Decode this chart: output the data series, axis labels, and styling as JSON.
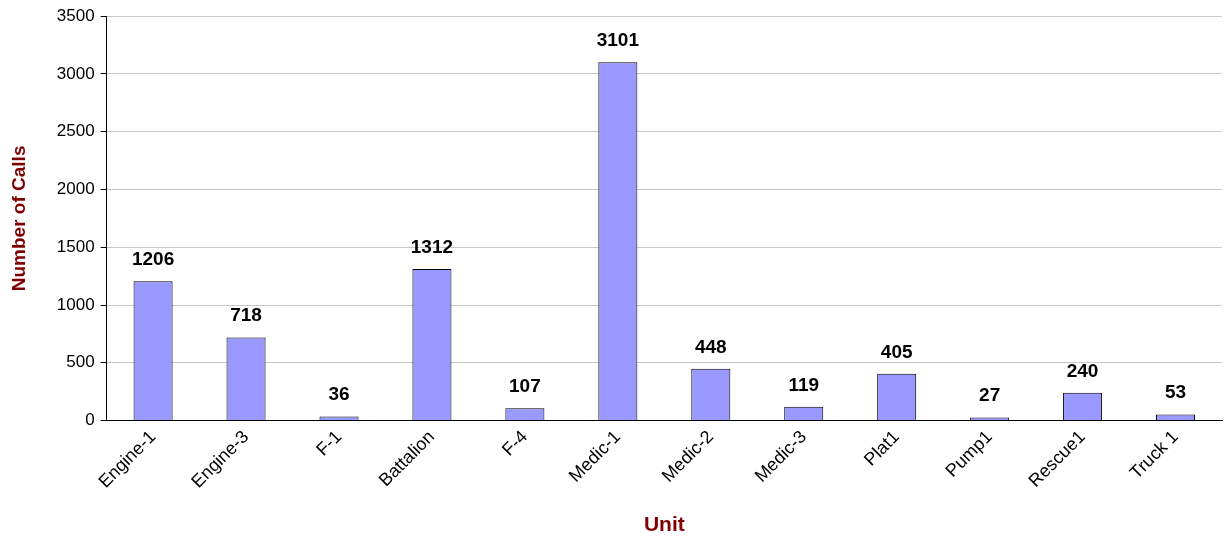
{
  "chart_data": {
    "type": "bar",
    "xlabel": "Unit",
    "ylabel": "Number of Calls",
    "categories": [
      "Engine-1",
      "Engine-3",
      "F-1",
      "Battalion",
      "F-4",
      "Medic-1",
      "Medic-2",
      "Medic-3",
      "Plat1",
      "Pump1",
      "Rescue1",
      "Truck 1"
    ],
    "values": [
      1206,
      718,
      36,
      1312,
      107,
      3101,
      448,
      119,
      405,
      27,
      240,
      53
    ],
    "color": "#9999ff",
    "ylim": [
      0,
      3500
    ],
    "yticks": [
      0,
      500,
      1000,
      1500,
      2000,
      2500,
      3000,
      3500
    ],
    "grid": "y",
    "data_labels": true,
    "legend": false
  }
}
